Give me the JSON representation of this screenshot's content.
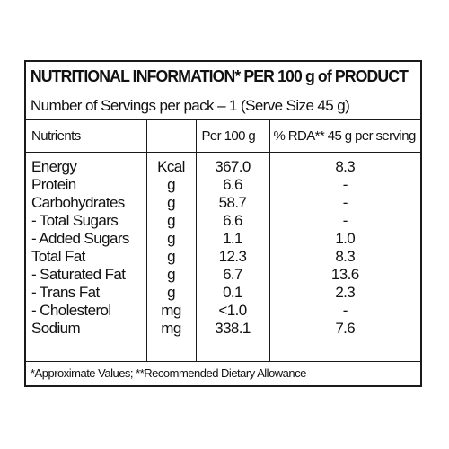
{
  "label": {
    "title": "NUTRITIONAL INFORMATION* PER 100 g of PRODUCT",
    "servings": "Number of Servings per pack – 1 (Serve Size 45 g)",
    "headers": {
      "nutrients": "Nutrients",
      "unit": "",
      "per100": "Per 100 g",
      "rda": "% RDA** 45 g per serving"
    },
    "rows": [
      {
        "name": "Energy",
        "unit": "Kcal",
        "per100": "367.0",
        "rda": "8.3"
      },
      {
        "name": "Protein",
        "unit": "g",
        "per100": "6.6",
        "rda": "-"
      },
      {
        "name": "Carbohydrates",
        "unit": "g",
        "per100": "58.7",
        "rda": "-"
      },
      {
        "name": "- Total Sugars",
        "unit": "g",
        "per100": "6.6",
        "rda": "-"
      },
      {
        "name": "- Added Sugars",
        "unit": "g",
        "per100": "1.1",
        "rda": "1.0"
      },
      {
        "name": "Total Fat",
        "unit": "g",
        "per100": "12.3",
        "rda": "8.3"
      },
      {
        "name": "- Saturated Fat",
        "unit": "g",
        "per100": "6.7",
        "rda": "13.6"
      },
      {
        "name": "- Trans Fat",
        "unit": "g",
        "per100": "0.1",
        "rda": "2.3"
      },
      {
        "name": "- Cholesterol",
        "unit": "mg",
        "per100": "<1.0",
        "rda": "-"
      },
      {
        "name": "Sodium",
        "unit": "mg",
        "per100": "338.1",
        "rda": "7.6"
      }
    ],
    "footer": "*Approximate Values;  **Recommended Dietary Allowance"
  }
}
